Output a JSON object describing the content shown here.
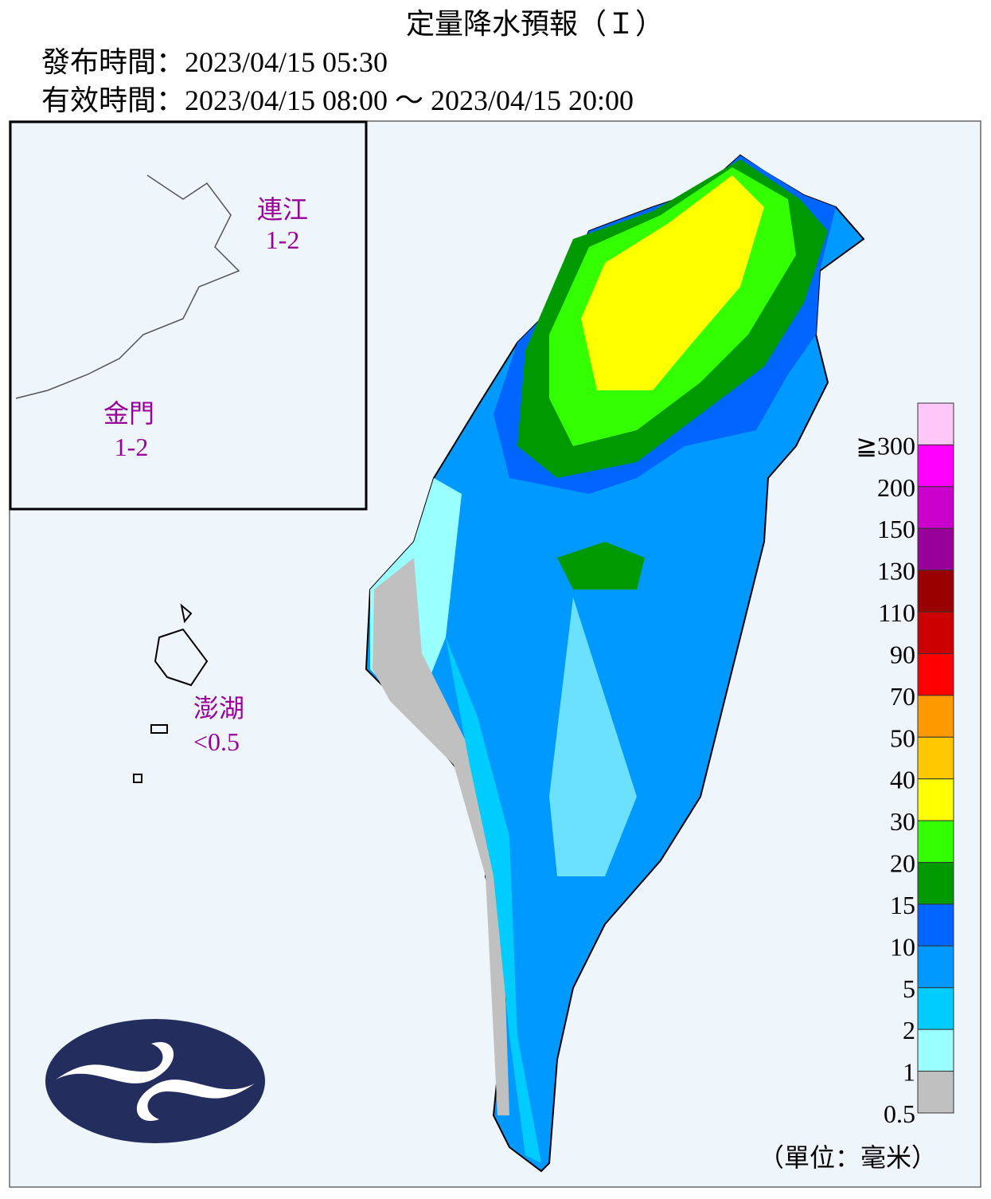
{
  "header": {
    "title": "定量降水預報（Ｉ）",
    "issued": "發布時間：2023/04/15 05:30",
    "valid": "有效時間：2023/04/15 08:00 ～ 2023/04/15 20:00"
  },
  "inset": {
    "matsu": {
      "name": "連江",
      "range": "1-2"
    },
    "kinmen": {
      "name": "金門",
      "range": "1-2"
    }
  },
  "penghu": {
    "name": "澎湖",
    "range": "<0.5"
  },
  "legend": {
    "unit": "（單位：毫米）",
    "entries": [
      {
        "label": "≧300",
        "color": "#ffc6f8"
      },
      {
        "label": "200",
        "color": "#ff00ff"
      },
      {
        "label": "150",
        "color": "#cc00cc"
      },
      {
        "label": "130",
        "color": "#990099"
      },
      {
        "label": "110",
        "color": "#990000"
      },
      {
        "label": "90",
        "color": "#cc0000"
      },
      {
        "label": "70",
        "color": "#ff0000"
      },
      {
        "label": "50",
        "color": "#ff9900"
      },
      {
        "label": "40",
        "color": "#ffc800"
      },
      {
        "label": "30",
        "color": "#ffff00"
      },
      {
        "label": "20",
        "color": "#33ff00"
      },
      {
        "label": "15",
        "color": "#009900"
      },
      {
        "label": "10",
        "color": "#0066ff"
      },
      {
        "label": "5",
        "color": "#0099ff"
      },
      {
        "label": "2",
        "color": "#00ccff"
      },
      {
        "label": "1",
        "color": "#99ffff"
      },
      {
        "label": "0.5",
        "color": "#c0c0c0"
      }
    ]
  }
}
